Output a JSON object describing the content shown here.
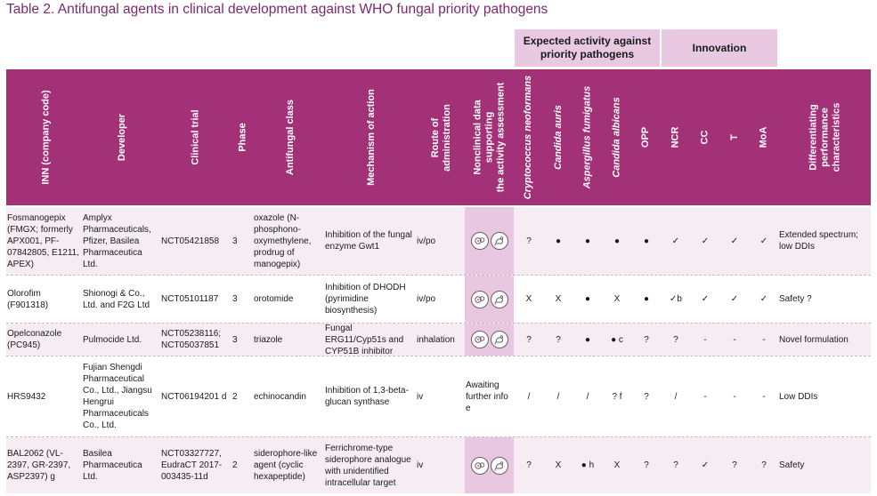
{
  "title": "Table 2. Antifungal agents in clinical development against WHO fungal priority pathogens",
  "group_headers": {
    "expected": "Expected activity against priority pathogens",
    "innovation": "Innovation"
  },
  "columns": {
    "inn": "INN (company code)",
    "developer": "Developer",
    "trial": "Clinical trial",
    "phase": "Phase",
    "class": "Antifungal class",
    "moa": "Mechanism of action",
    "route_1": "Route of",
    "route_2": "administration",
    "nonclin_1": "Nonclinical data",
    "nonclin_2": "supporting",
    "nonclin_3": "the activity assessment",
    "crypto": "Cryptococcus neoformans",
    "cauris": "Candida auris",
    "aspergillus": "Aspergillus fumigatus",
    "calbicans": "Candida albicans",
    "opp": "OPP",
    "ncr": "NCR",
    "cc": "CC",
    "t": "T",
    "moa_short": "MoA",
    "diff_1": "Differentiating",
    "diff_2": "performance",
    "diff_3": "characteristics"
  },
  "icons": {
    "nonclinical_a": "fungus-cell-icon",
    "nonclinical_b": "mouse-icon"
  },
  "colors": {
    "header": "#a23177",
    "group_header": "#e8c9e1",
    "title": "#7b2a6c",
    "row_shade": "#f5edf3"
  },
  "rows": [
    {
      "inn": "Fosmanogepix (FMGX; formerly APX001, PF-07842805, E1211, APEX)",
      "developer": "Amplyx Pharmaceuticals, Pfizer, Basilea Pharmaceutica Ltd.",
      "trial": "NCT05421858",
      "phase": "3",
      "class": "oxazole (N-phosphono-oxymethylene, prodrug of manogepix)",
      "moa": "Inhibition of the fungal enzyme Gwt1",
      "route": "iv/po",
      "nonclinical": "",
      "crypto": "?",
      "cauris": "●",
      "aspergillus": "●",
      "calbicans": "●",
      "opp": "●",
      "ncr": "✓",
      "cc": "✓",
      "t": "✓",
      "moa_flag": "✓",
      "diff": "Extended spectrum; low DDIs"
    },
    {
      "inn": "Olorofim (F901318)",
      "developer": "Shionogi & Co., Ltd. and F2G Ltd",
      "trial": "NCT05101187",
      "phase": "3",
      "class": "orotomide",
      "moa": "Inhibition of DHODH (pyrimidine biosynthesis)",
      "route": "iv/po",
      "nonclinical": "",
      "crypto": "X",
      "cauris": "X",
      "aspergillus": "●",
      "calbicans": "X",
      "opp": "●",
      "ncr": "✓b",
      "cc": "✓",
      "t": "✓",
      "moa_flag": "✓",
      "diff": "Safety ?"
    },
    {
      "inn": "Opelconazole (PC945)",
      "developer": "Pulmocide Ltd.",
      "trial": "NCT05238116; NCT05037851",
      "phase": "3",
      "class": "triazole",
      "moa": "Fungal ERG11/Cyp51s and CYP51B inhibitor",
      "route": "inhalation",
      "nonclinical": "",
      "crypto": "?",
      "cauris": "?",
      "aspergillus": "●",
      "calbicans": "● c",
      "opp": "?",
      "ncr": "?",
      "cc": "-",
      "t": "-",
      "moa_flag": "-",
      "diff": "Novel formulation"
    },
    {
      "inn": "HRS9432",
      "developer": "Fujian Shengdi Pharmaceutical Co., Ltd., Jiangsu Hengrui Pharmaceuticals Co., Ltd.",
      "trial": "NCT06194201 d",
      "phase": "2",
      "class": "echinocandin",
      "moa": "Inhibition of 1,3-beta-glucan synthase",
      "route": "iv",
      "nonclinical": "Awaiting further info e",
      "crypto": "/",
      "cauris": "/",
      "aspergillus": "/",
      "calbicans": "? f",
      "opp": "?",
      "ncr": "/",
      "cc": "-",
      "t": "-",
      "moa_flag": "-",
      "diff": "Low DDIs"
    },
    {
      "inn": "BAL2062 (VL-2397, GR-2397, ASP2397) g",
      "developer": "Basilea Pharmaceutica Ltd.",
      "trial": "NCT03327727, EudraCT 2017-003435-11d",
      "phase": "2",
      "class": "siderophore-like agent (cyclic hexapeptide)",
      "moa": "Ferrichrome-type siderophore analogue with unidentified intracellular target",
      "route": "iv",
      "nonclinical": "",
      "crypto": "?",
      "cauris": "X",
      "aspergillus": "● h",
      "calbicans": "X",
      "opp": "?",
      "ncr": "?",
      "cc": "✓",
      "t": "?",
      "moa_flag": "?",
      "diff": "Safety"
    }
  ]
}
